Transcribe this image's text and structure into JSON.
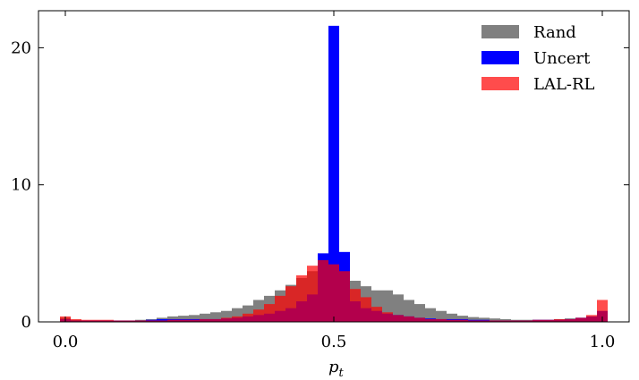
{
  "chart_data": {
    "type": "histogram",
    "xlabel": "p",
    "xlabel_subscript": "t",
    "bins": [
      -0.01,
      0.01,
      0.03,
      0.05,
      0.07,
      0.09,
      0.11,
      0.13,
      0.15,
      0.17,
      0.19,
      0.21,
      0.23,
      0.25,
      0.27,
      0.29,
      0.31,
      0.33,
      0.35,
      0.37,
      0.39,
      0.41,
      0.43,
      0.45,
      0.47,
      0.49,
      0.51,
      0.53,
      0.55,
      0.57,
      0.59,
      0.61,
      0.63,
      0.65,
      0.67,
      0.69,
      0.71,
      0.73,
      0.75,
      0.77,
      0.79,
      0.81,
      0.83,
      0.85,
      0.87,
      0.89,
      0.91,
      0.93,
      0.95,
      0.97,
      0.99,
      1.01
    ],
    "series": [
      {
        "name": "Rand",
        "color": "#808080",
        "opacity": 1,
        "values": [
          0.3,
          0.15,
          0.1,
          0.1,
          0.1,
          0.1,
          0.1,
          0.15,
          0.2,
          0.3,
          0.4,
          0.45,
          0.5,
          0.6,
          0.7,
          0.8,
          1.0,
          1.2,
          1.6,
          1.9,
          2.3,
          2.7,
          3.2,
          3.7,
          4.2,
          4.3,
          3.6,
          3.0,
          2.6,
          2.3,
          2.3,
          2.0,
          1.6,
          1.3,
          1.0,
          0.8,
          0.6,
          0.45,
          0.35,
          0.3,
          0.25,
          0.2,
          0.15,
          0.15,
          0.15,
          0.15,
          0.2,
          0.25,
          0.3,
          0.35,
          0.7
        ]
      },
      {
        "name": "Uncert",
        "color": "#0000ff",
        "opacity": 1,
        "values": [
          0.2,
          0.1,
          0.1,
          0.1,
          0.1,
          0.1,
          0.1,
          0.1,
          0.15,
          0.2,
          0.2,
          0.2,
          0.2,
          0.2,
          0.2,
          0.25,
          0.3,
          0.4,
          0.5,
          0.6,
          0.8,
          1.0,
          1.5,
          2.0,
          5.0,
          21.6,
          5.1,
          1.5,
          1.0,
          0.8,
          0.6,
          0.5,
          0.4,
          0.3,
          0.25,
          0.2,
          0.2,
          0.2,
          0.15,
          0.15,
          0.1,
          0.1,
          0.1,
          0.1,
          0.15,
          0.15,
          0.15,
          0.2,
          0.3,
          0.4,
          0.8
        ]
      },
      {
        "name": "LAL-RL",
        "color": "#ff0000",
        "opacity": 0.7,
        "values": [
          0.4,
          0.2,
          0.15,
          0.15,
          0.15,
          0.1,
          0.1,
          0.1,
          0.1,
          0.1,
          0.15,
          0.15,
          0.15,
          0.2,
          0.2,
          0.3,
          0.4,
          0.6,
          0.9,
          1.3,
          1.9,
          2.6,
          3.4,
          4.1,
          4.5,
          4.2,
          3.7,
          2.4,
          1.8,
          1.1,
          0.7,
          0.5,
          0.4,
          0.3,
          0.2,
          0.2,
          0.15,
          0.15,
          0.1,
          0.1,
          0.1,
          0.1,
          0.1,
          0.1,
          0.15,
          0.15,
          0.2,
          0.2,
          0.3,
          0.5,
          1.6
        ]
      }
    ],
    "xlim": [
      -0.05,
      1.05
    ],
    "xticks": [
      {
        "value": 0,
        "label": "0.0"
      },
      {
        "value": 0.5,
        "label": "0.5"
      },
      {
        "value": 1,
        "label": "1.0"
      }
    ],
    "ylim": [
      0,
      22.7
    ],
    "yticks": [
      0,
      10,
      20
    ],
    "legend": "upper right"
  }
}
